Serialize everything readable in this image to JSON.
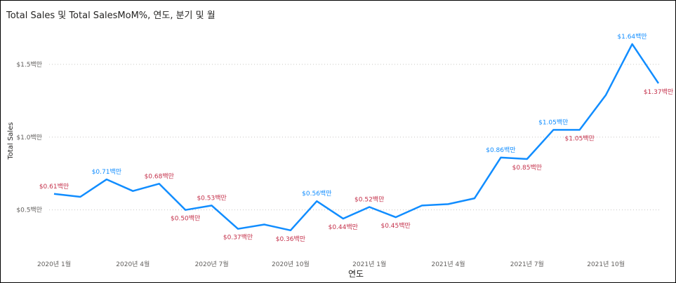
{
  "title": "Total Sales 및 Total SalesMoM%, 연도, 분기 및 월",
  "colors": {
    "line": "#118DFF",
    "label_up": "#118DFF",
    "label_down": "#C4314B",
    "grid": "#C8C6C4"
  },
  "chart_data": {
    "type": "line",
    "xlabel": "연도",
    "ylabel": "Total Sales",
    "y_unit": "millions USD",
    "ylim": [
      0.2,
      1.75
    ],
    "grid": true,
    "y_ticks": [
      {
        "value": 0.5,
        "label": "$0.5백만"
      },
      {
        "value": 1.0,
        "label": "$1.0백만"
      },
      {
        "value": 1.5,
        "label": "$1.5백만"
      }
    ],
    "x_ticks": [
      {
        "index": 0,
        "label": "2020년 1월"
      },
      {
        "index": 3,
        "label": "2020년 4월"
      },
      {
        "index": 6,
        "label": "2020년 7월"
      },
      {
        "index": 9,
        "label": "2020년 10월"
      },
      {
        "index": 12,
        "label": "2021년 1월"
      },
      {
        "index": 15,
        "label": "2021년 4월"
      },
      {
        "index": 18,
        "label": "2021년 7월"
      },
      {
        "index": 21,
        "label": "2021년 10월"
      }
    ],
    "x": [
      "2020-01",
      "2020-02",
      "2020-03",
      "2020-04",
      "2020-05",
      "2020-06",
      "2020-07",
      "2020-08",
      "2020-09",
      "2020-10",
      "2020-11",
      "2020-12",
      "2021-01",
      "2021-02",
      "2021-03",
      "2021-04",
      "2021-05",
      "2021-06",
      "2021-07",
      "2021-08",
      "2021-09",
      "2021-10",
      "2021-11",
      "2021-12"
    ],
    "series": [
      {
        "values": [
          0.61,
          0.59,
          0.71,
          0.63,
          0.68,
          0.5,
          0.53,
          0.37,
          0.4,
          0.36,
          0.56,
          0.44,
          0.52,
          0.45,
          0.53,
          0.54,
          0.58,
          0.86,
          0.85,
          1.05,
          1.05,
          1.29,
          1.64,
          1.37
        ]
      }
    ],
    "data_labels": [
      {
        "index": 0,
        "text": "$0.61백만",
        "position": "above",
        "color": "down"
      },
      {
        "index": 2,
        "text": "$0.71백만",
        "position": "above",
        "color": "up"
      },
      {
        "index": 4,
        "text": "$0.68백만",
        "position": "above",
        "color": "down"
      },
      {
        "index": 5,
        "text": "$0.50백만",
        "position": "below",
        "color": "down"
      },
      {
        "index": 6,
        "text": "$0.53백만",
        "position": "above",
        "color": "down"
      },
      {
        "index": 7,
        "text": "$0.37백만",
        "position": "below",
        "color": "down"
      },
      {
        "index": 9,
        "text": "$0.36백만",
        "position": "below",
        "color": "down"
      },
      {
        "index": 10,
        "text": "$0.56백만",
        "position": "above",
        "color": "up"
      },
      {
        "index": 11,
        "text": "$0.44백만",
        "position": "below",
        "color": "down"
      },
      {
        "index": 12,
        "text": "$0.52백만",
        "position": "above",
        "color": "down"
      },
      {
        "index": 13,
        "text": "$0.45백만",
        "position": "below",
        "color": "down"
      },
      {
        "index": 17,
        "text": "$0.86백만",
        "position": "above",
        "color": "up"
      },
      {
        "index": 18,
        "text": "$0.85백만",
        "position": "below",
        "color": "down"
      },
      {
        "index": 19,
        "text": "$1.05백만",
        "position": "above",
        "color": "up"
      },
      {
        "index": 20,
        "text": "$1.05백만",
        "position": "below",
        "color": "down"
      },
      {
        "index": 22,
        "text": "$1.64백만",
        "position": "above",
        "color": "up"
      },
      {
        "index": 23,
        "text": "$1.37백만",
        "position": "below",
        "color": "down"
      }
    ]
  }
}
